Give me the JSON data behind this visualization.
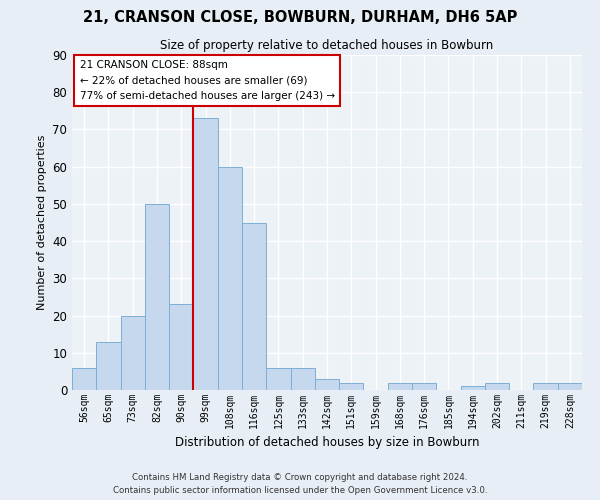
{
  "title": "21, CRANSON CLOSE, BOWBURN, DURHAM, DH6 5AP",
  "subtitle": "Size of property relative to detached houses in Bowburn",
  "xlabel": "Distribution of detached houses by size in Bowburn",
  "ylabel": "Number of detached properties",
  "bar_labels": [
    "56sqm",
    "65sqm",
    "73sqm",
    "82sqm",
    "90sqm",
    "99sqm",
    "108sqm",
    "116sqm",
    "125sqm",
    "133sqm",
    "142sqm",
    "151sqm",
    "159sqm",
    "168sqm",
    "176sqm",
    "185sqm",
    "194sqm",
    "202sqm",
    "211sqm",
    "219sqm",
    "228sqm"
  ],
  "bar_values": [
    6,
    13,
    20,
    50,
    23,
    73,
    60,
    45,
    6,
    6,
    3,
    2,
    0,
    2,
    2,
    0,
    1,
    2,
    0,
    2,
    2
  ],
  "bar_color": "#c5d8ed",
  "bar_edge_color": "#7bafd4",
  "ylim": [
    0,
    90
  ],
  "yticks": [
    0,
    10,
    20,
    30,
    40,
    50,
    60,
    70,
    80,
    90
  ],
  "vline_x": 4.5,
  "vline_color": "#cc0000",
  "annotation_title": "21 CRANSON CLOSE: 88sqm",
  "annotation_line1": "← 22% of detached houses are smaller (69)",
  "annotation_line2": "77% of semi-detached houses are larger (243) →",
  "annotation_box_color": "#ffffff",
  "annotation_box_edge": "#cc0000",
  "footer_line1": "Contains HM Land Registry data © Crown copyright and database right 2024.",
  "footer_line2": "Contains public sector information licensed under the Open Government Licence v3.0.",
  "bg_color": "#e8eef5",
  "plot_bg_color": "#edf2f7",
  "grid_color": "#ffffff",
  "title_fontsize": 10.5,
  "subtitle_fontsize": 8.5
}
